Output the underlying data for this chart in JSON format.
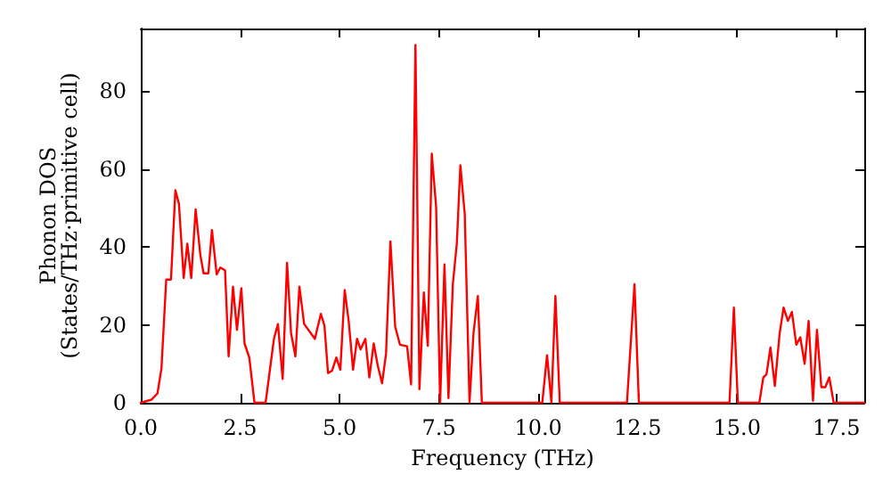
{
  "chart_data": {
    "type": "line",
    "xlabel": "Frequency (THz)",
    "ylabel": "Phonon DOS\n(States/THz·primitive cell)",
    "xlim": [
      0,
      18.2
    ],
    "xticks": [
      {
        "value": 0,
        "label": "0.0"
      },
      {
        "value": 2.5,
        "label": "2.5"
      },
      {
        "value": 5,
        "label": "5.0"
      },
      {
        "value": 7.5,
        "label": "7.5"
      },
      {
        "value": 10,
        "label": "10.0"
      },
      {
        "value": 12.5,
        "label": "12.5"
      },
      {
        "value": 15,
        "label": "15.0"
      },
      {
        "value": 17.5,
        "label": "17.5"
      }
    ],
    "ylim": [
      0,
      96
    ],
    "yticks": [
      0,
      20,
      40,
      60,
      80
    ],
    "grid": false,
    "marker": "none",
    "line_style": "solid",
    "series": [
      {
        "color": "#ff0000",
        "x": [
          0,
          0.27,
          0.42,
          0.52,
          0.64,
          0.76,
          0.87,
          0.96,
          1.08,
          1.17,
          1.27,
          1.38,
          1.5,
          1.58,
          1.7,
          1.79,
          1.91,
          2.0,
          2.12,
          2.21,
          2.32,
          2.42,
          2.53,
          2.61,
          2.73,
          2.86,
          3.14,
          3.35,
          3.45,
          3.57,
          3.68,
          3.78,
          3.89,
          3.99,
          4.11,
          4.38,
          4.53,
          4.62,
          4.71,
          4.81,
          4.92,
          5.02,
          5.13,
          5.23,
          5.34,
          5.44,
          5.53,
          5.65,
          5.75,
          5.86,
          5.96,
          6.07,
          6.17,
          6.28,
          6.4,
          6.52,
          6.7,
          6.8,
          6.91,
          7.01,
          7.12,
          7.22,
          7.32,
          7.43,
          7.53,
          7.64,
          7.74,
          7.85,
          7.95,
          8.04,
          8.15,
          8.27,
          8.37,
          8.48,
          8.58,
          10.1,
          10.22,
          10.33,
          10.43,
          10.54,
          12.23,
          12.42,
          12.53,
          14.81,
          14.92,
          15.02,
          15.56,
          15.66,
          15.74,
          15.84,
          15.95,
          16.07,
          16.17,
          16.28,
          16.38,
          16.49,
          16.59,
          16.7,
          16.8,
          16.91,
          17.01,
          17.12,
          17.22,
          17.32,
          17.43,
          18.2
        ],
        "values": [
          0,
          0.8,
          2.4,
          8.8,
          31.6,
          31.6,
          54.5,
          51,
          32,
          40.8,
          32,
          49.6,
          37.8,
          33.2,
          33.2,
          44.3,
          32.9,
          34.7,
          34,
          11.9,
          29.8,
          18.7,
          29.4,
          15.2,
          11.6,
          0,
          0,
          16.4,
          20.2,
          6.1,
          35.9,
          17.9,
          11.9,
          29.8,
          20.2,
          16.4,
          22.8,
          19.8,
          7.6,
          8.2,
          11.6,
          8.5,
          28.9,
          21,
          8.5,
          16.4,
          13.7,
          16.4,
          6.5,
          15.2,
          9.6,
          5,
          12.6,
          41.4,
          19.5,
          14.9,
          14.5,
          4.7,
          91.8,
          3.5,
          28.3,
          14.6,
          63.9,
          50.2,
          0,
          35.5,
          1.2,
          30.4,
          40.8,
          60.9,
          48.4,
          0,
          17.9,
          27.4,
          0,
          0,
          12.2,
          0,
          27.4,
          0,
          0,
          30.4,
          0,
          0,
          24.4,
          0,
          0,
          6.5,
          7.3,
          14.2,
          4.3,
          17.7,
          24.4,
          21,
          23.3,
          14.9,
          16.8,
          10,
          21,
          0.5,
          18.7,
          4,
          4,
          6.5,
          0,
          0
        ]
      }
    ]
  }
}
